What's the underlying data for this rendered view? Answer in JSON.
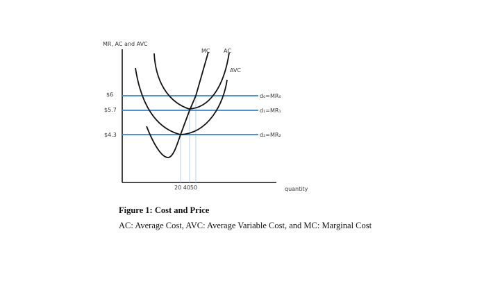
{
  "chart_data": {
    "type": "line",
    "ylabel": "MR, AC and AVC",
    "xlabel": "quantity",
    "price_ticks": [
      "$6",
      "$5.7",
      "$4.3"
    ],
    "price_values": [
      6,
      5.7,
      4.3
    ],
    "quantity_ticks_label": "20 4050",
    "quantity_values": [
      20,
      40,
      50
    ],
    "grid": false,
    "curves": [
      {
        "label": "MC",
        "color": "#111111"
      },
      {
        "label": "AC",
        "color": "#111111"
      },
      {
        "label": "AVC",
        "color": "#111111"
      }
    ],
    "revenue_lines": [
      {
        "label": "d₀=MR₀",
        "price": 6,
        "color": "#3b82c4"
      },
      {
        "label": "d₁=MR₁",
        "price": 5.7,
        "color": "#3b82c4"
      },
      {
        "label": "d₂=MR₂",
        "price": 4.3,
        "color": "#3b82c4"
      }
    ]
  },
  "caption": {
    "title": "Figure 1: Cost and Price",
    "text": "AC: Average Cost, AVC: Average Variable Cost, and MC: Marginal Cost"
  }
}
